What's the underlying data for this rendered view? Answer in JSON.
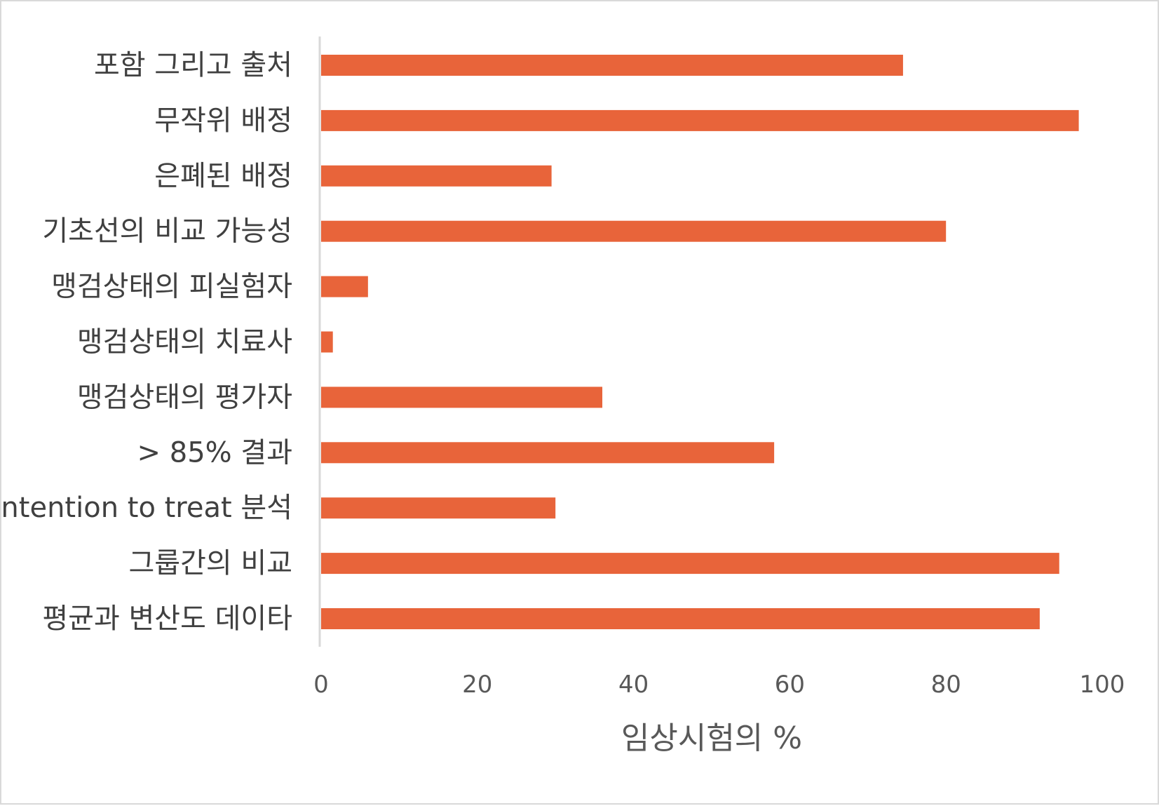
{
  "chart_data": {
    "type": "bar",
    "orientation": "horizontal",
    "title": "",
    "xlabel": "임상시험의 %",
    "ylabel": "",
    "xlim": [
      0,
      100
    ],
    "x_ticks": [
      "0",
      "20",
      "40",
      "60",
      "80",
      "100"
    ],
    "grid": false,
    "legend": "none",
    "bar_color": "#E8643A",
    "axis_color": "#d9d9d9",
    "categories": [
      "포함 그리고 출처",
      "무작위 배정",
      "은폐된 배정",
      "기초선의 비교 가능성",
      "맹검상태의 피실험자",
      "맹검상태의 치료사",
      "맹검상태의 평가자",
      "> 85% 결과",
      "Intention to treat 분석",
      "그룹간의 비교",
      "평균과 변산도 데이타"
    ],
    "values": [
      74.5,
      97,
      29.5,
      80,
      6,
      1.5,
      36,
      58,
      30,
      94.5,
      92
    ]
  }
}
